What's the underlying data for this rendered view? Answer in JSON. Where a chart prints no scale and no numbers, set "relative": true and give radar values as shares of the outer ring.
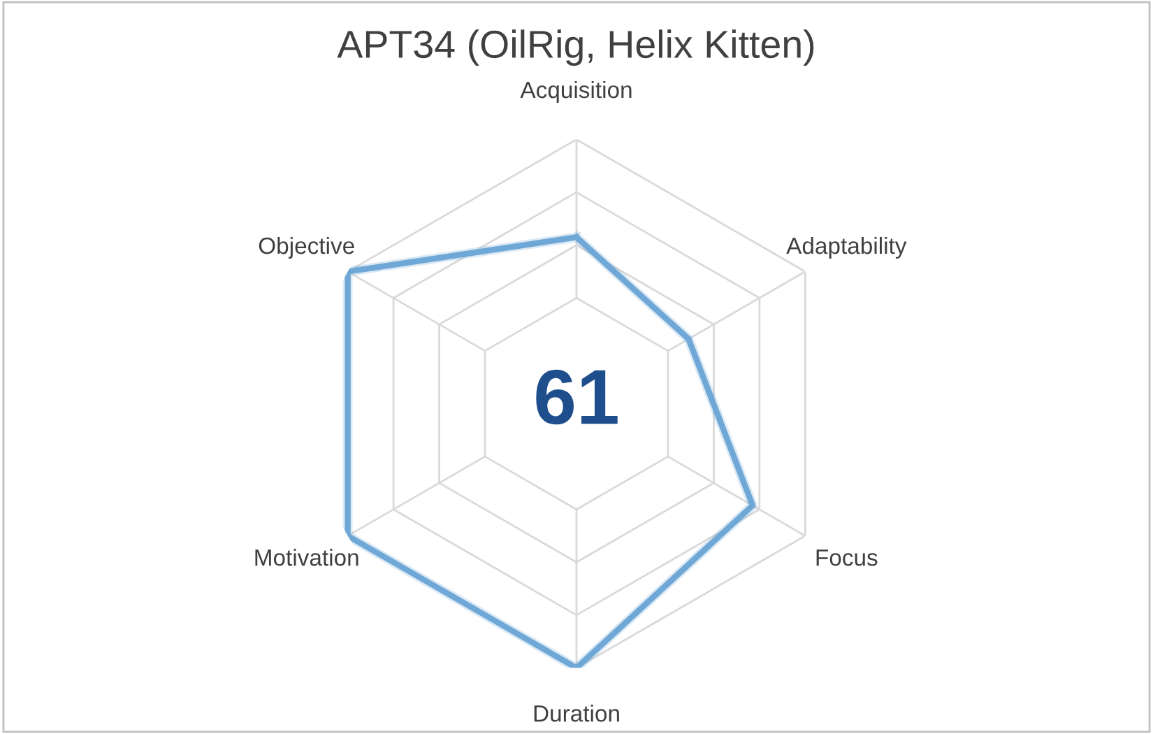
{
  "chart_data": {
    "type": "radar",
    "title": "APT34 (OilRig, Helix Kitten)",
    "relative": true,
    "grid": true,
    "legend": false,
    "categories": [
      "Acquisition",
      "Adaptability",
      "Focus",
      "Duration",
      "Motivation",
      "Objective"
    ],
    "series": [
      {
        "color": "#6fa8d6",
        "values": [
          0.63,
          0.49,
          0.77,
          1.0,
          1.0,
          1.0
        ]
      }
    ],
    "annotations": [
      "61"
    ]
  }
}
